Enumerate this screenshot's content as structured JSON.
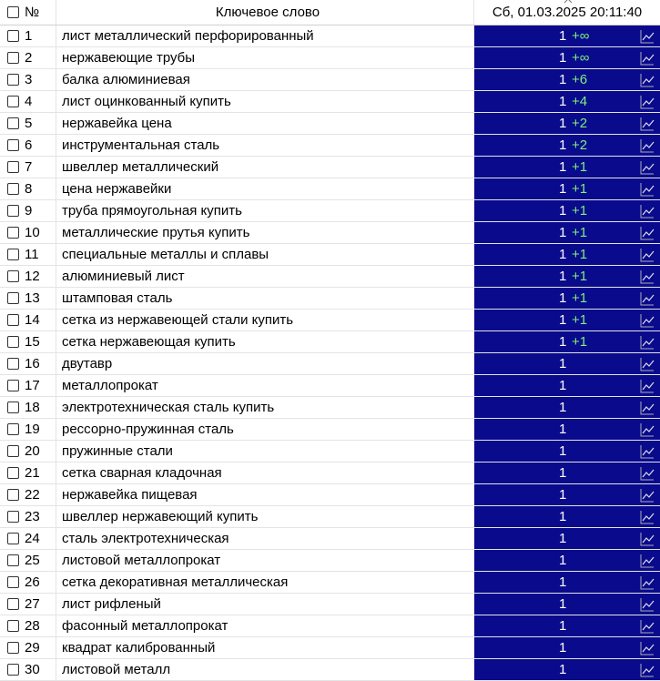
{
  "header": {
    "number": "№",
    "keyword": "Ключевое слово",
    "date": "Сб, 01.03.2025 20:11:40"
  },
  "rows": [
    {
      "num": 1,
      "keyword": "лист металлический перфорированный",
      "position": 1,
      "change": "+∞"
    },
    {
      "num": 2,
      "keyword": "нержавеющие трубы",
      "position": 1,
      "change": "+∞"
    },
    {
      "num": 3,
      "keyword": "балка алюминиевая",
      "position": 1,
      "change": "+6"
    },
    {
      "num": 4,
      "keyword": "лист оцинкованный купить",
      "position": 1,
      "change": "+4"
    },
    {
      "num": 5,
      "keyword": "нержавейка цена",
      "position": 1,
      "change": "+2"
    },
    {
      "num": 6,
      "keyword": "инструментальная сталь",
      "position": 1,
      "change": "+2"
    },
    {
      "num": 7,
      "keyword": "швеллер металлический",
      "position": 1,
      "change": "+1"
    },
    {
      "num": 8,
      "keyword": "цена нержавейки",
      "position": 1,
      "change": "+1"
    },
    {
      "num": 9,
      "keyword": "труба прямоугольная купить",
      "position": 1,
      "change": "+1"
    },
    {
      "num": 10,
      "keyword": "металлические прутья купить",
      "position": 1,
      "change": "+1"
    },
    {
      "num": 11,
      "keyword": "специальные металлы и сплавы",
      "position": 1,
      "change": "+1"
    },
    {
      "num": 12,
      "keyword": "алюминиевый лист",
      "position": 1,
      "change": "+1"
    },
    {
      "num": 13,
      "keyword": "штамповая сталь",
      "position": 1,
      "change": "+1"
    },
    {
      "num": 14,
      "keyword": "сетка из нержавеющей стали купить",
      "position": 1,
      "change": "+1"
    },
    {
      "num": 15,
      "keyword": "сетка нержавеющая купить",
      "position": 1,
      "change": "+1"
    },
    {
      "num": 16,
      "keyword": "двутавр",
      "position": 1
    },
    {
      "num": 17,
      "keyword": "металлопрокат",
      "position": 1
    },
    {
      "num": 18,
      "keyword": "электротехническая сталь купить",
      "position": 1
    },
    {
      "num": 19,
      "keyword": "рессорно-пружинная сталь",
      "position": 1
    },
    {
      "num": 20,
      "keyword": "пружинные стали",
      "position": 1
    },
    {
      "num": 21,
      "keyword": "сетка сварная кладочная",
      "position": 1
    },
    {
      "num": 22,
      "keyword": "нержавейка пищевая",
      "position": 1
    },
    {
      "num": 23,
      "keyword": "швеллер нержавеющий купить",
      "position": 1
    },
    {
      "num": 24,
      "keyword": "сталь электротехническая",
      "position": 1
    },
    {
      "num": 25,
      "keyword": "листовой металлопрокат",
      "position": 1
    },
    {
      "num": 26,
      "keyword": "сетка декоративная металлическая",
      "position": 1
    },
    {
      "num": 27,
      "keyword": "лист рифленый",
      "position": 1
    },
    {
      "num": 28,
      "keyword": "фасонный металлопрокат",
      "position": 1
    },
    {
      "num": 29,
      "keyword": "квадрат калиброванный",
      "position": 1
    },
    {
      "num": 30,
      "keyword": "листовой металл",
      "position": 1
    }
  ]
}
